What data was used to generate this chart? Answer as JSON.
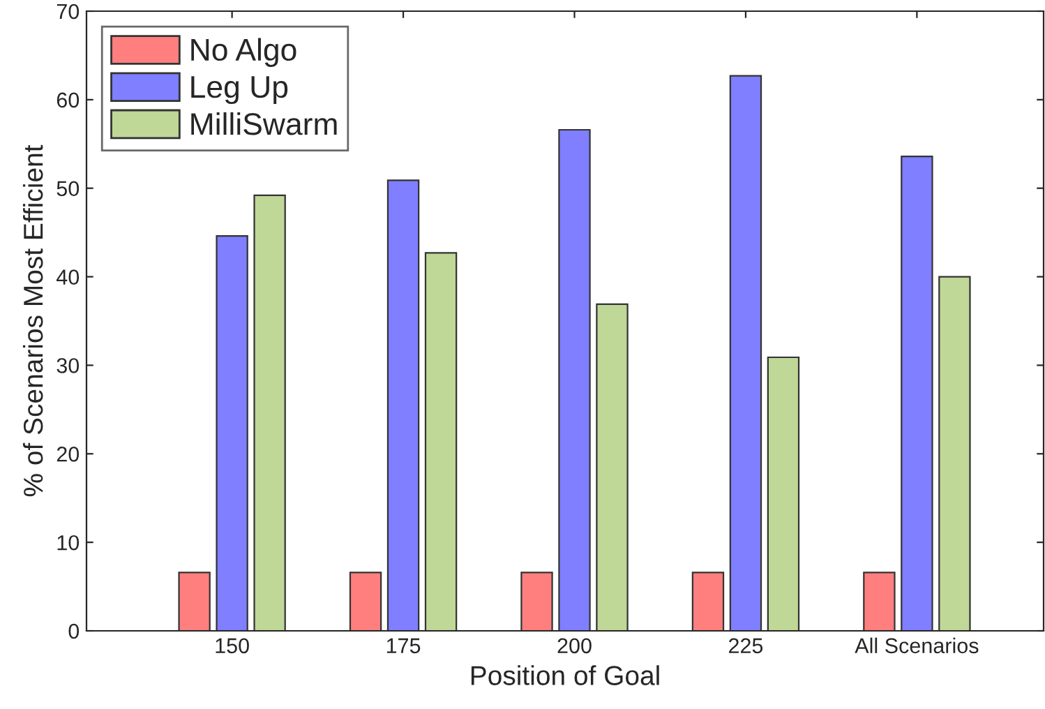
{
  "chart_data": {
    "type": "bar",
    "xlabel": "Position of Goal",
    "ylabel": "% of Scenarios Most Efficient",
    "categories": [
      "150",
      "175",
      "200",
      "225",
      "All Scenarios"
    ],
    "series": [
      {
        "name": "No Algo",
        "color": "#ff7f7f",
        "values": [
          6.6,
          6.6,
          6.6,
          6.6,
          6.6
        ]
      },
      {
        "name": "Leg Up",
        "color": "#7f7fff",
        "values": [
          44.6,
          50.9,
          56.6,
          62.7,
          53.6
        ]
      },
      {
        "name": "MilliSwarm",
        "color": "#bfd797",
        "values": [
          49.2,
          42.7,
          36.9,
          30.9,
          40.0
        ]
      }
    ],
    "ylim": [
      0,
      70
    ],
    "yticks": [
      0,
      10,
      20,
      30,
      40,
      50,
      60,
      70
    ],
    "grid": false,
    "legend": "top left"
  }
}
